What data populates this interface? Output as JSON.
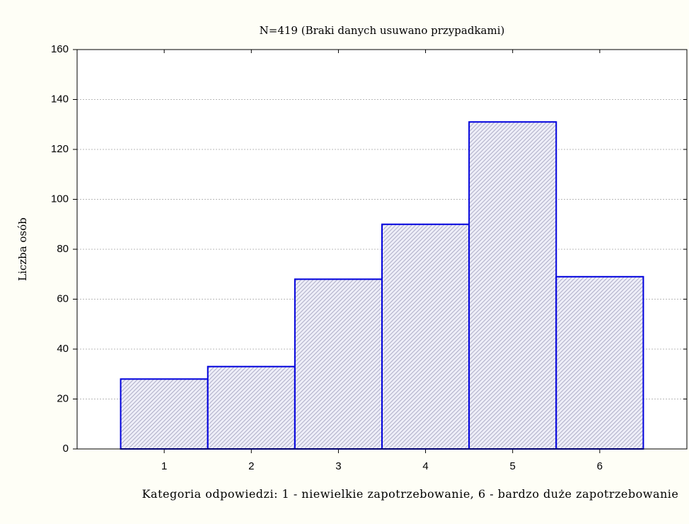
{
  "chart_data": {
    "type": "bar",
    "title": "N=419 (Braki danych usuwano przypadkami)",
    "y_label": "Liczba osób",
    "x_label": "Kategoria odpowiedzi: 1 - niewielkie zapotrzebowanie, 6 - bardzo duże zapotrzebowanie",
    "categories": [
      "1",
      "2",
      "3",
      "4",
      "5",
      "6"
    ],
    "values": [
      28,
      33,
      68,
      90,
      131,
      69
    ],
    "color": "#0000dd",
    "ylim": [
      0,
      160
    ],
    "yticks": [
      0,
      20,
      40,
      60,
      80,
      100,
      120,
      140,
      160
    ],
    "grid": true
  }
}
